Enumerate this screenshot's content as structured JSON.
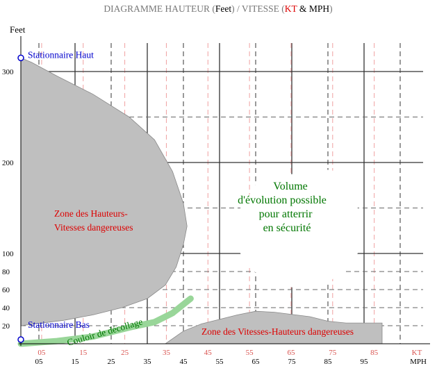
{
  "chart_data": {
    "type": "area",
    "title": {
      "prefix": "DIAGRAMME HAUTEUR (",
      "feet": "Feet",
      "middle": ") / VITESSE (",
      "kt": "KT",
      "amp": " & ",
      "mph": "MPH",
      "suffix": ")"
    },
    "ylabel": "Feet",
    "y_ticks": [
      "300",
      "200",
      "100",
      "80",
      "60",
      "40",
      "20"
    ],
    "x_ticks_mph": [
      "05",
      "15",
      "25",
      "35",
      "45",
      "55",
      "65",
      "75",
      "85",
      "95"
    ],
    "x_ticks_kt": [
      "05",
      "15",
      "25",
      "35",
      "45",
      "55",
      "65",
      "75",
      "85"
    ],
    "x_unit_mph": "MPH",
    "x_unit_kt": "KT",
    "points": [
      {
        "label": "Stationnaire Haut",
        "x_mph": 0,
        "y_feet": 315
      },
      {
        "label": "Stationnaire Bas",
        "x_mph": 0,
        "y_feet": 0
      }
    ],
    "zones": [
      {
        "label_lines": [
          "Zone des Hauteurs-",
          "Vitesses dangereuses"
        ],
        "boundary": [
          [
            0,
            315
          ],
          [
            3,
            310
          ],
          [
            10,
            295
          ],
          [
            20,
            275
          ],
          [
            30,
            250
          ],
          [
            37,
            225
          ],
          [
            42,
            190
          ],
          [
            45,
            155
          ],
          [
            46,
            130
          ],
          [
            45,
            110
          ],
          [
            43,
            85
          ],
          [
            40,
            65
          ],
          [
            35,
            50
          ],
          [
            28,
            40
          ],
          [
            20,
            32
          ],
          [
            12,
            26
          ],
          [
            4,
            22
          ],
          [
            0,
            20
          ]
        ]
      },
      {
        "label_lines": [
          "Zone des Vitesses-Hauteurs dangereuses"
        ],
        "boundary": [
          [
            40,
            0
          ],
          [
            45,
            14
          ],
          [
            50,
            22
          ],
          [
            60,
            32
          ],
          [
            65,
            36
          ],
          [
            70,
            35
          ],
          [
            80,
            30
          ],
          [
            85,
            25
          ],
          [
            90,
            23
          ],
          [
            100,
            23
          ],
          [
            100,
            0
          ]
        ]
      }
    ],
    "corridor": {
      "label": "Couloir de décollage",
      "path": [
        [
          0,
          0
        ],
        [
          10,
          3
        ],
        [
          20,
          8
        ],
        [
          30,
          18
        ],
        [
          37,
          24
        ],
        [
          42,
          34
        ],
        [
          47,
          50
        ]
      ]
    },
    "safe_volume": {
      "label_lines": [
        "Volume",
        "d'évolution possible",
        "pour atterrir",
        "en sécurité"
      ]
    },
    "colors": {
      "danger_zone": "#bfbfbf",
      "corridor": "#99d699",
      "title": "#777777",
      "kt": "#dd0000",
      "point": "#0000cc",
      "zone_text": "#dd0000",
      "safe_text": "#007700"
    }
  }
}
